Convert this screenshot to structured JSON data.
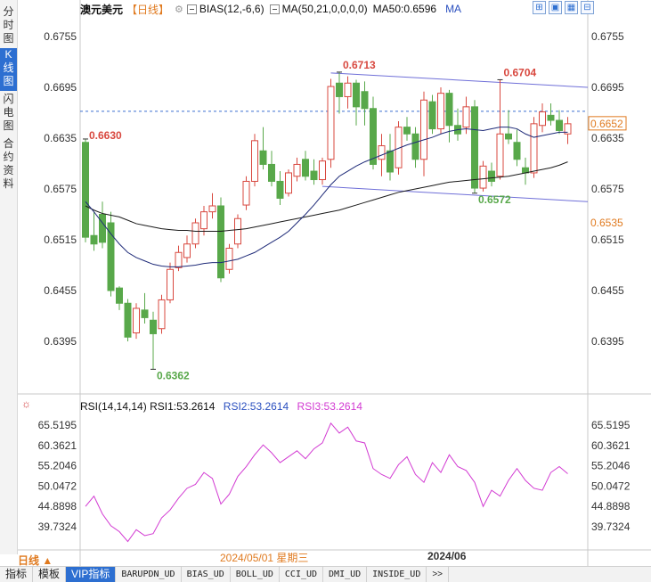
{
  "sidebar": {
    "tabs": [
      {
        "label": "分时图",
        "active": false
      },
      {
        "label": "K线图",
        "active": true
      },
      {
        "label": "闪电图",
        "active": false
      },
      {
        "label": "合约资料",
        "active": false
      }
    ]
  },
  "header": {
    "symbol": "澳元美元",
    "period": "【日线】",
    "settings_icon": "gear-icon",
    "bias": "BIAS(12,-6,6)",
    "ma": "MA(50,21,0,0,0,0)",
    "ma50": "MA50:0.6596",
    "ma_label": "MA"
  },
  "tools": {
    "buttons": [
      "⊞",
      "▣",
      "▦",
      "⊟"
    ]
  },
  "price_axis": {
    "ticks": [
      "0.6755",
      "0.6695",
      "0.6635",
      "0.6575",
      "0.6515",
      "0.6455",
      "0.6395"
    ],
    "current_price": "0.6652",
    "lower_mark": "0.6535"
  },
  "annotations": {
    "high1": "0.6713",
    "high2": "0.6704",
    "start": "0.6630",
    "low1": "0.6362",
    "low2": "0.6572"
  },
  "rsi": {
    "label": "RSI(14,14,14)",
    "rsi1": "RSI1:53.2614",
    "rsi2": "RSI2:53.2614",
    "rsi3": "RSI3:53.2614",
    "ticks": [
      "65.5195",
      "60.3621",
      "55.2046",
      "50.0472",
      "44.8898",
      "39.7324"
    ]
  },
  "date_axis": {
    "period_button": "日线 ▲",
    "cursor_date": "2024/05/01 星期三",
    "month_mark": "2024/06"
  },
  "tabbar": {
    "tabs": [
      "指标",
      "模板",
      "VIP指标",
      "BARUPDN_UD",
      "BIAS_UD",
      "BOLL_UD",
      "CCI_UD",
      "DMI_UD",
      "INSIDE_UD",
      ">>"
    ],
    "active_index": 2
  },
  "colors": {
    "up": "#d8483f",
    "down": "#58a84a",
    "ma_dark": "#1a1a1a",
    "ma_navy": "#1e2a78",
    "channel": "#6f6fd8",
    "rsi": "#d23ad2",
    "current_price": "#e07a1f"
  },
  "chart_data": {
    "type": "candlestick",
    "price_ylim": [
      0.6335,
      0.6775
    ],
    "candles": [
      {
        "o": 0.663,
        "h": 0.6634,
        "c": 0.6518,
        "l": 0.6512
      },
      {
        "o": 0.652,
        "h": 0.6548,
        "c": 0.651,
        "l": 0.6502
      },
      {
        "o": 0.6545,
        "h": 0.656,
        "c": 0.6512,
        "l": 0.6505
      },
      {
        "o": 0.6535,
        "h": 0.6548,
        "c": 0.6455,
        "l": 0.6448
      },
      {
        "o": 0.6458,
        "h": 0.646,
        "c": 0.644,
        "l": 0.6432
      },
      {
        "o": 0.644,
        "h": 0.6445,
        "c": 0.64,
        "l": 0.6395
      },
      {
        "o": 0.6405,
        "h": 0.644,
        "c": 0.6434,
        "l": 0.6398
      },
      {
        "o": 0.6432,
        "h": 0.6452,
        "c": 0.6423,
        "l": 0.6416
      },
      {
        "o": 0.642,
        "h": 0.643,
        "c": 0.6404,
        "l": 0.6362
      },
      {
        "o": 0.641,
        "h": 0.645,
        "c": 0.6444,
        "l": 0.6404
      },
      {
        "o": 0.6444,
        "h": 0.6488,
        "c": 0.648,
        "l": 0.644
      },
      {
        "o": 0.6482,
        "h": 0.6508,
        "c": 0.65,
        "l": 0.6478
      },
      {
        "o": 0.6494,
        "h": 0.652,
        "c": 0.651,
        "l": 0.6488
      },
      {
        "o": 0.651,
        "h": 0.654,
        "c": 0.6535,
        "l": 0.6505
      },
      {
        "o": 0.6528,
        "h": 0.6555,
        "c": 0.6548,
        "l": 0.652
      },
      {
        "o": 0.6548,
        "h": 0.657,
        "c": 0.6555,
        "l": 0.654
      },
      {
        "o": 0.6555,
        "h": 0.6565,
        "c": 0.647,
        "l": 0.6465
      },
      {
        "o": 0.648,
        "h": 0.651,
        "c": 0.6505,
        "l": 0.6475
      },
      {
        "o": 0.651,
        "h": 0.6545,
        "c": 0.654,
        "l": 0.6505
      },
      {
        "o": 0.6556,
        "h": 0.659,
        "c": 0.6584,
        "l": 0.655
      },
      {
        "o": 0.6584,
        "h": 0.664,
        "c": 0.6632,
        "l": 0.6578
      },
      {
        "o": 0.662,
        "h": 0.6648,
        "c": 0.6604,
        "l": 0.6598
      },
      {
        "o": 0.6604,
        "h": 0.662,
        "c": 0.6584,
        "l": 0.6578
      },
      {
        "o": 0.6584,
        "h": 0.6596,
        "c": 0.6564,
        "l": 0.6556
      },
      {
        "o": 0.657,
        "h": 0.6598,
        "c": 0.6594,
        "l": 0.6566
      },
      {
        "o": 0.659,
        "h": 0.6612,
        "c": 0.6604,
        "l": 0.6584
      },
      {
        "o": 0.661,
        "h": 0.662,
        "c": 0.659,
        "l": 0.6585
      },
      {
        "o": 0.6596,
        "h": 0.661,
        "c": 0.6586,
        "l": 0.658
      },
      {
        "o": 0.6586,
        "h": 0.6612,
        "c": 0.6608,
        "l": 0.658
      },
      {
        "o": 0.661,
        "h": 0.6705,
        "c": 0.6696,
        "l": 0.66
      },
      {
        "o": 0.67,
        "h": 0.6713,
        "c": 0.6684,
        "l": 0.6664
      },
      {
        "o": 0.6684,
        "h": 0.6708,
        "c": 0.67,
        "l": 0.667
      },
      {
        "o": 0.67,
        "h": 0.6704,
        "c": 0.6672,
        "l": 0.665
      },
      {
        "o": 0.669,
        "h": 0.6702,
        "c": 0.667,
        "l": 0.665
      },
      {
        "o": 0.667,
        "h": 0.6684,
        "c": 0.6604,
        "l": 0.6598
      },
      {
        "o": 0.661,
        "h": 0.664,
        "c": 0.6626,
        "l": 0.659
      },
      {
        "o": 0.662,
        "h": 0.664,
        "c": 0.6595,
        "l": 0.6585
      },
      {
        "o": 0.66,
        "h": 0.6655,
        "c": 0.6648,
        "l": 0.6592
      },
      {
        "o": 0.6648,
        "h": 0.666,
        "c": 0.664,
        "l": 0.6632
      },
      {
        "o": 0.664,
        "h": 0.6648,
        "c": 0.661,
        "l": 0.66
      },
      {
        "o": 0.661,
        "h": 0.669,
        "c": 0.668,
        "l": 0.659
      },
      {
        "o": 0.6678,
        "h": 0.6686,
        "c": 0.6646,
        "l": 0.664
      },
      {
        "o": 0.6646,
        "h": 0.6695,
        "c": 0.6688,
        "l": 0.664
      },
      {
        "o": 0.6688,
        "h": 0.6692,
        "c": 0.665,
        "l": 0.663
      },
      {
        "o": 0.665,
        "h": 0.667,
        "c": 0.664,
        "l": 0.6632
      },
      {
        "o": 0.6648,
        "h": 0.6684,
        "c": 0.6672,
        "l": 0.664
      },
      {
        "o": 0.6672,
        "h": 0.668,
        "c": 0.6576,
        "l": 0.657
      },
      {
        "o": 0.6576,
        "h": 0.6608,
        "c": 0.6602,
        "l": 0.6572
      },
      {
        "o": 0.6596,
        "h": 0.6606,
        "c": 0.6584,
        "l": 0.6578
      },
      {
        "o": 0.659,
        "h": 0.6704,
        "c": 0.664,
        "l": 0.6586
      },
      {
        "o": 0.664,
        "h": 0.6668,
        "c": 0.6634,
        "l": 0.6628
      },
      {
        "o": 0.663,
        "h": 0.6645,
        "c": 0.661,
        "l": 0.6602
      },
      {
        "o": 0.66,
        "h": 0.6612,
        "c": 0.6594,
        "l": 0.658
      },
      {
        "o": 0.6594,
        "h": 0.666,
        "c": 0.6652,
        "l": 0.6588
      },
      {
        "o": 0.665,
        "h": 0.6676,
        "c": 0.6666,
        "l": 0.6642
      },
      {
        "o": 0.6662,
        "h": 0.6676,
        "c": 0.6656,
        "l": 0.665
      },
      {
        "o": 0.6656,
        "h": 0.6668,
        "c": 0.6644,
        "l": 0.664
      },
      {
        "o": 0.664,
        "h": 0.666,
        "c": 0.6652,
        "l": 0.6628
      }
    ],
    "ma_dark": [
      0.6555,
      0.655,
      0.6546,
      0.6544,
      0.6542,
      0.6538,
      0.6534,
      0.6532,
      0.653,
      0.6528,
      0.6527,
      0.6526,
      0.6526,
      0.6525,
      0.6525,
      0.6525,
      0.6525,
      0.6526,
      0.6527,
      0.6528,
      0.653,
      0.6532,
      0.6534,
      0.6536,
      0.6538,
      0.654,
      0.6542,
      0.6544,
      0.6546,
      0.6548,
      0.655,
      0.6553,
      0.6556,
      0.6559,
      0.6562,
      0.6565,
      0.6568,
      0.6571,
      0.6573,
      0.6575,
      0.6577,
      0.6579,
      0.6581,
      0.6583,
      0.6584,
      0.6585,
      0.6586,
      0.6587,
      0.6588,
      0.6589,
      0.659,
      0.6592,
      0.6594,
      0.6596,
      0.6598,
      0.66,
      0.6603,
      0.6607
    ],
    "ma_navy": [
      0.656,
      0.6548,
      0.6535,
      0.6522,
      0.651,
      0.65,
      0.6494,
      0.649,
      0.6486,
      0.6484,
      0.6483,
      0.6483,
      0.6484,
      0.6485,
      0.6487,
      0.6488,
      0.6488,
      0.649,
      0.6492,
      0.6496,
      0.65,
      0.6506,
      0.6512,
      0.6518,
      0.6525,
      0.6535,
      0.6545,
      0.6556,
      0.6568,
      0.658,
      0.659,
      0.6596,
      0.6602,
      0.6607,
      0.6611,
      0.6615,
      0.6619,
      0.6623,
      0.6627,
      0.663,
      0.6633,
      0.6636,
      0.664,
      0.6643,
      0.6645,
      0.6646,
      0.6645,
      0.6644,
      0.6646,
      0.6648,
      0.6648,
      0.6646,
      0.664,
      0.6636,
      0.6638,
      0.664,
      0.6642,
      0.6642
    ],
    "channel_upper": [
      [
        29,
        0.6712
      ],
      [
        58,
        0.6695
      ]
    ],
    "channel_lower": [
      [
        28,
        0.6578
      ],
      [
        58,
        0.656
      ]
    ],
    "rsi_ylim": [
      35,
      68
    ],
    "rsi_values": [
      44.9,
      47.5,
      43.0,
      40.0,
      38.5,
      36.0,
      39.0,
      37.5,
      38.0,
      42.0,
      44.0,
      47.0,
      49.5,
      50.5,
      53.5,
      52.0,
      45.5,
      48.0,
      52.5,
      55.0,
      58.0,
      60.5,
      58.5,
      56.0,
      57.5,
      59.0,
      57.0,
      59.5,
      61.0,
      66.0,
      63.5,
      65.0,
      61.5,
      61.0,
      54.5,
      53.0,
      52.0,
      55.5,
      57.5,
      53.0,
      51.0,
      56.0,
      53.5,
      58.0,
      55.0,
      54.0,
      51.0,
      44.9,
      49.0,
      47.5,
      51.5,
      54.5,
      51.5,
      49.5,
      49.0,
      53.5,
      55.0,
      53.2
    ]
  }
}
